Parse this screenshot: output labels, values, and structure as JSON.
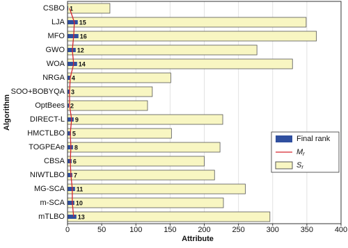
{
  "chart_data": {
    "type": "bar",
    "orientation": "horizontal",
    "x_label": "Attribute",
    "y_label": "Algorithm",
    "categories": [
      "CSBO",
      "LJA",
      "MFO",
      "GWO",
      "WOA",
      "NRGA",
      "SOO+BOBYQA",
      "OptBees",
      "DIRECT-L",
      "HMCTLBO",
      "TOGPEAe",
      "CBSA",
      "NIWTLBO",
      "MG-SCA",
      "m-SCA",
      "mTLBO"
    ],
    "series": [
      {
        "name": "Final rank",
        "type": "bar",
        "color": "#2f4f9f",
        "values": [
          1,
          15,
          16,
          12,
          14,
          4,
          3,
          2,
          9,
          5,
          8,
          6,
          7,
          11,
          10,
          13
        ]
      },
      {
        "name": "Mr",
        "type": "line",
        "color": "#d6262e",
        "values": [
          3,
          10,
          9,
          7,
          9,
          4,
          3,
          3,
          6,
          4,
          5,
          4,
          5,
          7,
          7,
          9
        ]
      },
      {
        "name": "Sr",
        "type": "bar",
        "color": "#f8f6c2",
        "values": [
          62,
          349,
          364,
          277,
          329,
          151,
          124,
          117,
          227,
          152,
          223,
          200,
          215,
          260,
          228,
          296
        ]
      }
    ],
    "xlim": [
      0,
      400
    ],
    "xticks": [
      0,
      50,
      100,
      150,
      200,
      250,
      300,
      350,
      400
    ],
    "grid": true
  }
}
